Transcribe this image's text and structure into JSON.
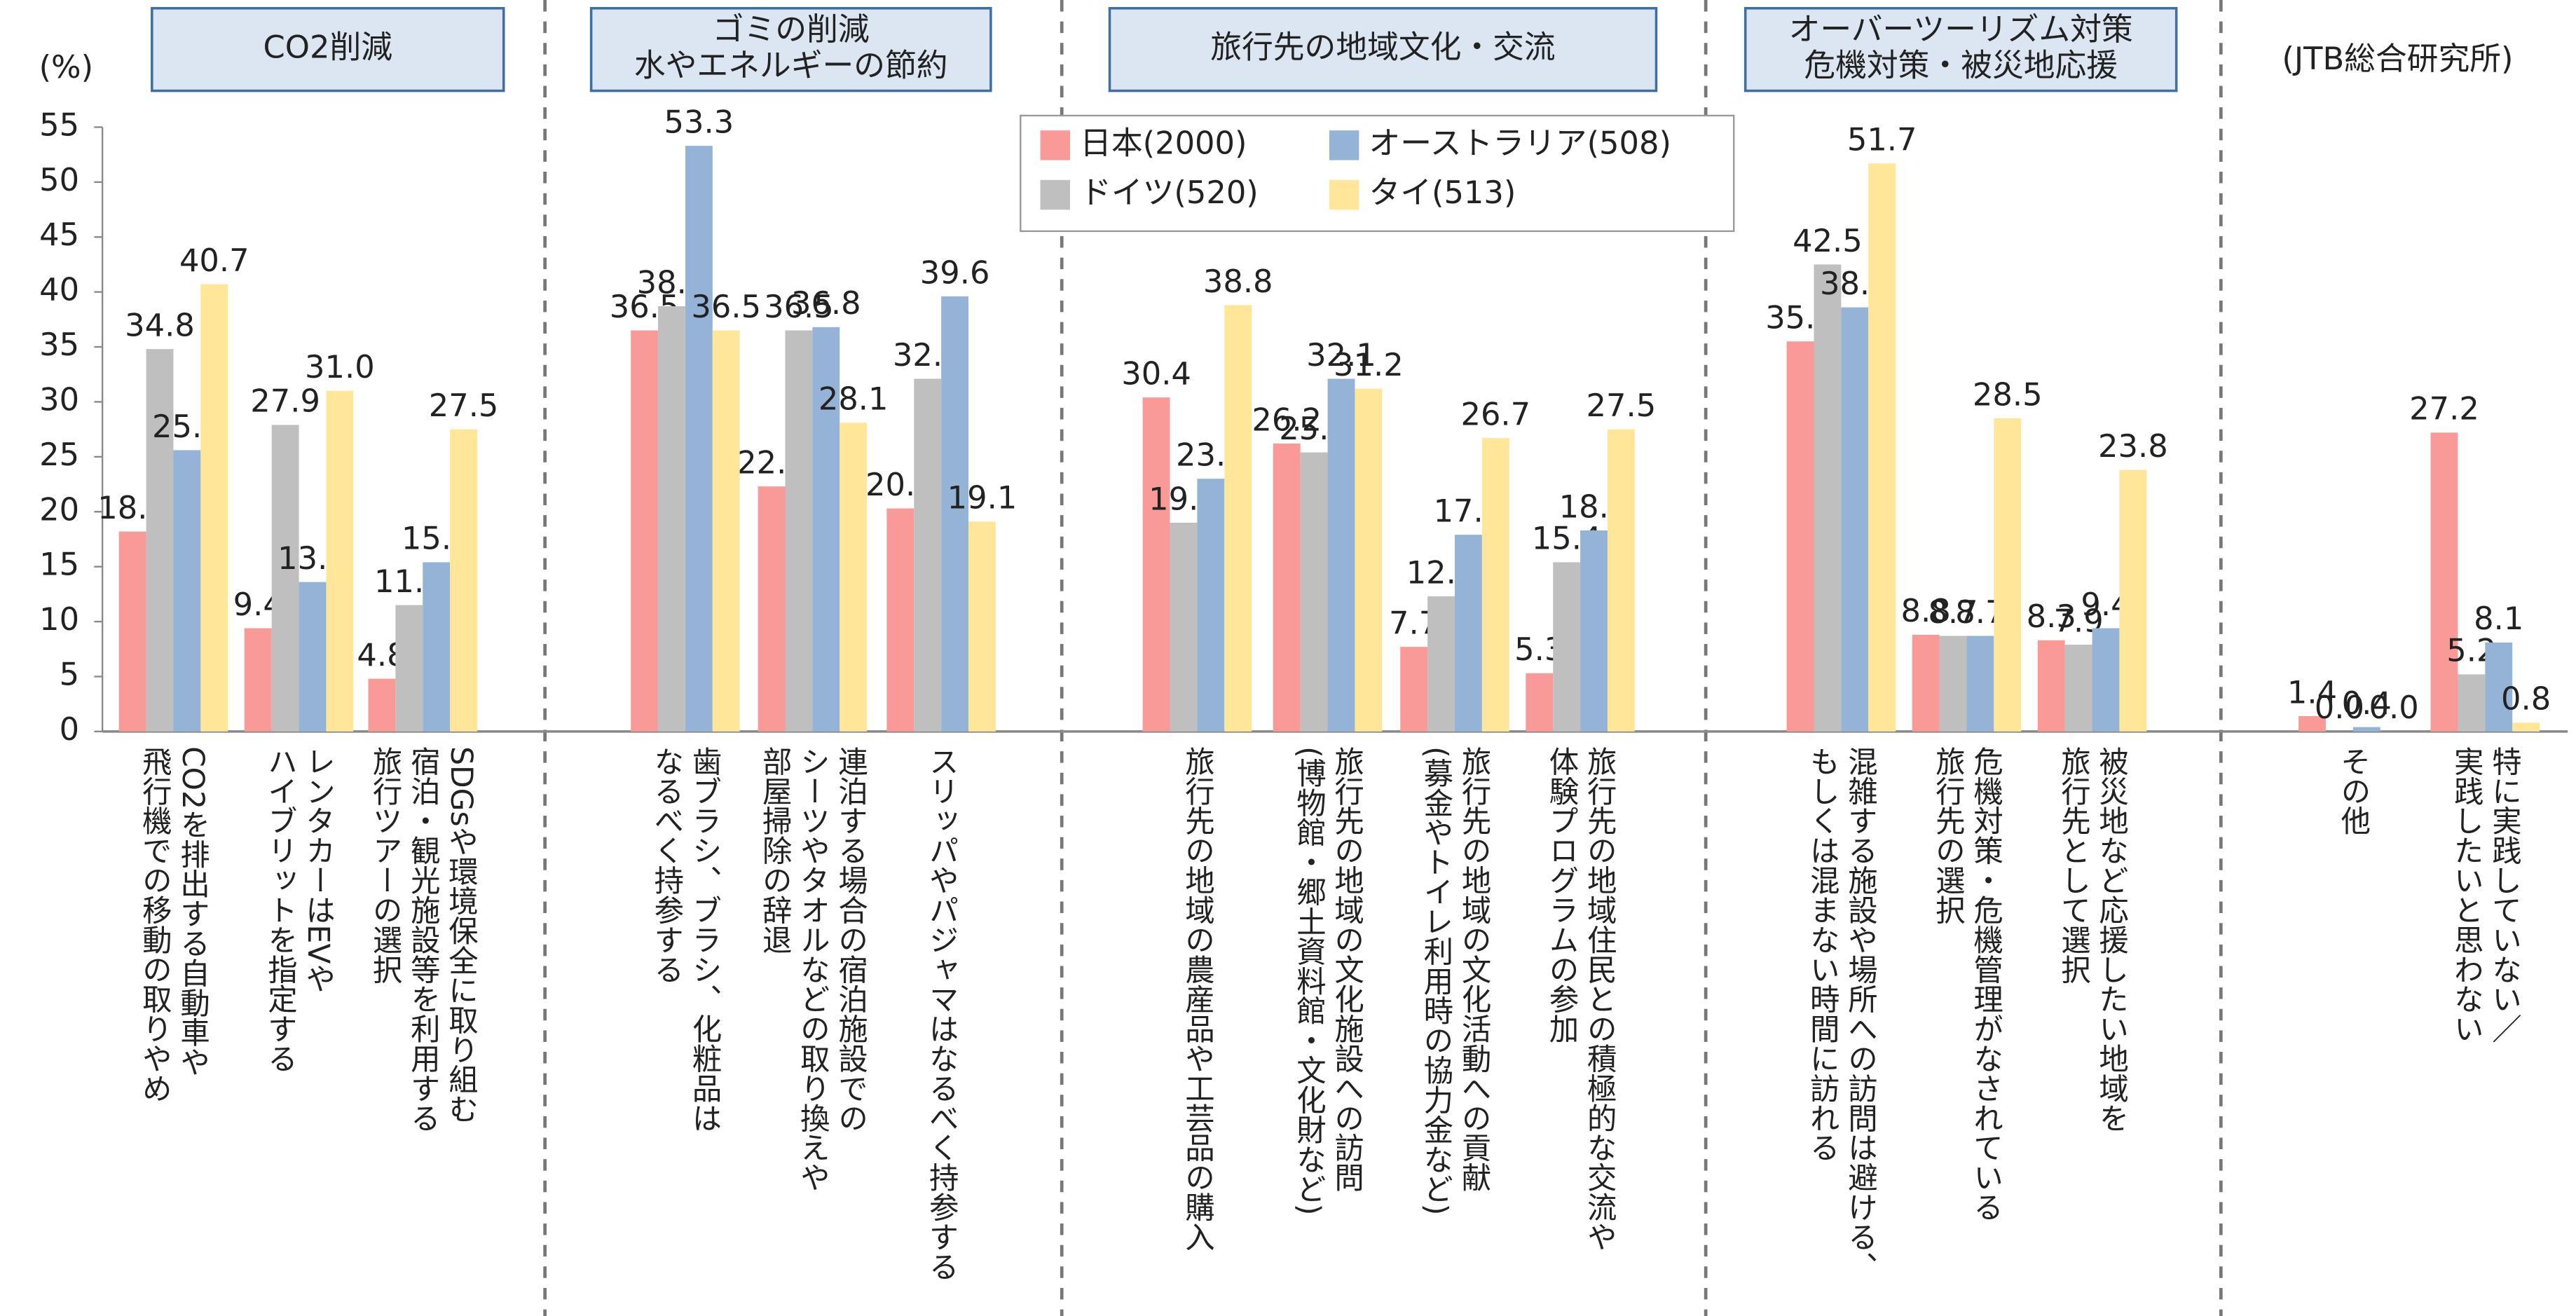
{
  "chart_data": {
    "type": "bar",
    "ylabel": "(%)",
    "source": "(JTB総合研究所)",
    "group_labels": [
      [
        "CO2削減"
      ],
      [
        "ゴミの削減",
        "水やエネルギーの節約"
      ],
      [
        "旅行先の地域文化・交流"
      ],
      [
        "オーバーツーリズム対策",
        "危機対策・被災地応援"
      ]
    ],
    "categories": [
      [
        "CO2を排出する自動車や",
        "飛行機での移動の取りやめ"
      ],
      [
        "レンタカーはEVや",
        "ハイブリットを指定する"
      ],
      [
        "SDGsや環境保全に取り組む",
        "宿泊・観光施設等を利用する",
        "旅行ツアーの選択"
      ],
      [
        "歯ブラシ、ブラシ、化粧品は",
        "なるべく持参する"
      ],
      [
        "連泊する場合の宿泊施設での",
        "シーツやタオルなどの取り換えや",
        "部屋掃除の辞退"
      ],
      [
        "スリッパやパジャマはなるべく持参する"
      ],
      [
        "旅行先の地域の農産品や工芸品の購入"
      ],
      [
        "旅行先の地域の文化施設への訪問",
        "(博物館・郷土資料館・文化財など)"
      ],
      [
        "旅行先の地域の文化活動への貢献",
        "(募金やトイレ利用時の協力金など)"
      ],
      [
        "旅行先の地域住民との積極的な交流や",
        "体験プログラムの参加"
      ],
      [
        "混雑する施設や場所への訪問は避ける、",
        "もしくは混まない時間に訪れる"
      ],
      [
        "危機対策・危機管理がなされている",
        "旅行先の選択"
      ],
      [
        "被災地など応援したい地域を",
        "旅行先として選択"
      ],
      [
        "その他"
      ],
      [
        "特に実践していない／",
        "実践したいと思わない"
      ]
    ],
    "series": [
      {
        "name": "日本(2000)",
        "color": "#f99a99",
        "values": [
          18.2,
          9.4,
          4.8,
          36.5,
          22.3,
          20.3,
          30.4,
          26.2,
          7.7,
          5.3,
          35.5,
          8.8,
          8.3,
          1.4,
          27.2
        ],
        "value_labels": [
          "18.2",
          "9.4",
          "4.8",
          "36.5",
          "22.3",
          "20.3",
          "30.4",
          "26.2",
          "7.7",
          "5.3",
          "35.5",
          "8.8",
          "8.3",
          "1.4",
          "27.2"
        ]
      },
      {
        "name": "ドイツ(520)",
        "color": "#bfbfbf",
        "values": [
          34.8,
          27.9,
          11.5,
          38.7,
          36.5,
          32.1,
          19.0,
          25.4,
          12.3,
          15.4,
          42.5,
          8.7,
          7.9,
          0.0,
          5.2
        ],
        "value_labels": [
          "34.8",
          "27.9",
          "11.5",
          "38.7",
          "36.5",
          "32.1",
          "19.0",
          "25.4",
          "12.3",
          "15.4",
          "42.5",
          "8.7",
          "7.9",
          "0.0",
          "5.2"
        ]
      },
      {
        "name": "オーストラリア(508)",
        "color": "#95b3d7",
        "values": [
          25.6,
          13.6,
          15.4,
          53.3,
          36.8,
          39.6,
          23.0,
          32.1,
          17.9,
          18.3,
          38.6,
          8.7,
          9.4,
          0.4,
          8.1
        ],
        "value_labels": [
          "25.6",
          "13.6",
          "15.4",
          "53.3",
          "36.8",
          "39.6",
          "23.0",
          "32.1",
          "17.9",
          "18.3",
          "38.6",
          "8.7",
          "9.4",
          "0.4",
          "8.1"
        ]
      },
      {
        "name": "タイ(513)",
        "color": "#ffe699",
        "values": [
          40.7,
          31.0,
          27.5,
          36.5,
          28.1,
          19.1,
          38.8,
          31.2,
          26.7,
          27.5,
          51.7,
          28.5,
          23.8,
          0.0,
          0.8
        ],
        "value_labels": [
          "40.7",
          "31.0",
          "27.5",
          "36.5",
          "28.1",
          "19.1",
          "38.8",
          "31.2",
          "26.7",
          "27.5",
          "51.7",
          "28.5",
          "23.8",
          "0.0",
          "0.8"
        ]
      }
    ],
    "ylim": [
      0,
      55
    ],
    "yticks": [
      0,
      5,
      10,
      15,
      20,
      25,
      30,
      35,
      40,
      45,
      50,
      55
    ],
    "legend": "top-center"
  }
}
